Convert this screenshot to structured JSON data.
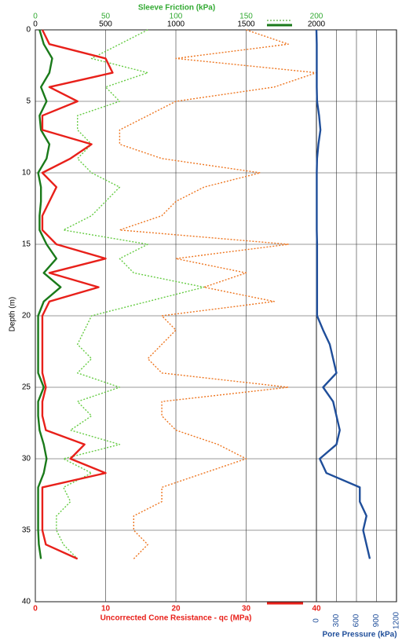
{
  "chart_data": {
    "type": "line",
    "title": "Sleeve Friction (kPa)",
    "xlabel": "Uncorrected Cone Resistance - qc (MPa)",
    "ylabel": "Depth (m)",
    "pore_label": "Pore Pressure (kPa)",
    "ylim": [
      0,
      40
    ],
    "yticks": [
      0,
      5,
      10,
      15,
      20,
      25,
      30,
      35,
      40
    ],
    "xlim": [
      0,
      40
    ],
    "xticks": [
      0,
      10,
      20,
      30,
      40
    ],
    "x2lim": [
      0,
      200
    ],
    "x2ticks": [
      0,
      50,
      100,
      150,
      200
    ],
    "x3lim": [
      0,
      2000
    ],
    "x3ticks": [
      0,
      500,
      1000,
      1500,
      2000
    ],
    "porelim": [
      0,
      1200
    ],
    "poreticks": [
      0,
      300,
      600,
      900,
      1200
    ],
    "grid": true,
    "depth": [
      0,
      1,
      2,
      3,
      4,
      5,
      6,
      7,
      8,
      9,
      10,
      11,
      12,
      13,
      14,
      15,
      16,
      17,
      18,
      19,
      20,
      21,
      22,
      23,
      24,
      25,
      26,
      27,
      28,
      29,
      30,
      31,
      32,
      33,
      34,
      35,
      36,
      37
    ],
    "series": [
      {
        "axis": "x2",
        "color": "#66cc44",
        "dash": true,
        "values": [
          80,
          60,
          40,
          80,
          50,
          60,
          30,
          30,
          40,
          30,
          40,
          60,
          50,
          40,
          20,
          80,
          60,
          70,
          120,
          80,
          40,
          35,
          30,
          40,
          30,
          60,
          30,
          40,
          25,
          60,
          20,
          40,
          20,
          25,
          15,
          15,
          20,
          30
        ]
      },
      {
        "axis": "x3",
        "color": "#ee7722",
        "dash": true,
        "values": [
          1500,
          1800,
          1000,
          2000,
          1700,
          1000,
          800,
          600,
          600,
          900,
          1600,
          1200,
          1000,
          900,
          600,
          1800,
          1000,
          1500,
          1200,
          1700,
          900,
          1000,
          900,
          800,
          900,
          1800,
          900,
          900,
          1000,
          1300,
          1500,
          1200,
          900,
          900,
          700,
          700,
          800,
          700
        ]
      },
      {
        "axis": "x3",
        "color": "#1a7a1a",
        "dash": false,
        "values": [
          30,
          60,
          120,
          100,
          40,
          80,
          30,
          40,
          100,
          80,
          20,
          40,
          40,
          30,
          30,
          80,
          150,
          60,
          180,
          60,
          20,
          20,
          20,
          20,
          20,
          60,
          20,
          20,
          30,
          60,
          80,
          60,
          20,
          20,
          20,
          20,
          25,
          40
        ]
      },
      {
        "axis": "x",
        "color": "#e8201a",
        "dash": false,
        "values": [
          1,
          2,
          10,
          11,
          2,
          6,
          1,
          1,
          8,
          5,
          1,
          3,
          2,
          1,
          1,
          3,
          10,
          2,
          9,
          2,
          1,
          1,
          1,
          1,
          1,
          1.5,
          1,
          1,
          1.5,
          7,
          5,
          10,
          1,
          1,
          1,
          1,
          1.5,
          6
        ]
      },
      {
        "axis": "pore",
        "color": "#1f4e9a",
        "dash": false,
        "values": [
          0,
          5,
          5,
          5,
          5,
          10,
          40,
          60,
          30,
          10,
          5,
          5,
          5,
          5,
          5,
          10,
          10,
          10,
          10,
          10,
          10,
          100,
          200,
          250,
          300,
          100,
          250,
          300,
          350,
          300,
          50,
          150,
          650,
          650,
          750,
          700,
          750,
          800
        ]
      }
    ]
  }
}
